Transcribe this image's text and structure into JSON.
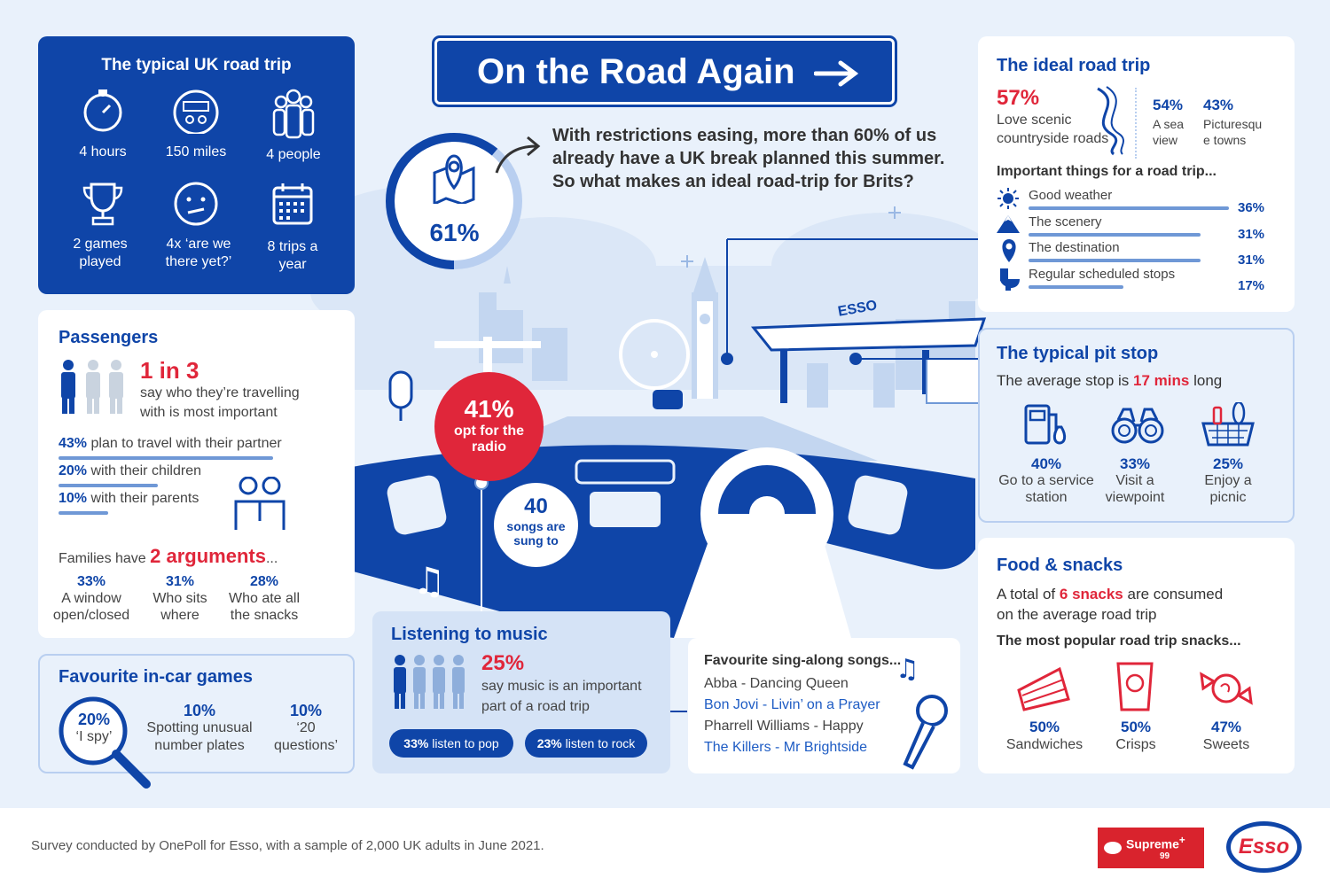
{
  "colors": {
    "navy": "#0f45a8",
    "red": "#e0263a",
    "light": "#e9f1fb",
    "bar": "#6f98d6"
  },
  "title": "On the Road Again",
  "intro": {
    "percent": "61%",
    "line1": "With restrictions easing, more than 60% of us",
    "line2": "already have a UK break planned this summer.",
    "line3": "So what makes an ideal road-trip for Brits?"
  },
  "typical": {
    "title": "The typical UK road trip",
    "items": [
      {
        "icon": "stopwatch-icon",
        "label": "4 hours"
      },
      {
        "icon": "odometer-icon",
        "label": "150 miles"
      },
      {
        "icon": "people-icon",
        "label": "4 people"
      },
      {
        "icon": "trophy-icon",
        "label": "2 games played"
      },
      {
        "icon": "confused-face-icon",
        "label": "4x ‘are we there yet?’"
      },
      {
        "icon": "calendar-icon",
        "label": "8 trips a year"
      }
    ]
  },
  "passengers": {
    "title": "Passengers",
    "stat": "1 in 3",
    "stat_text1": "say who they’re travelling",
    "stat_text2": "with is most important",
    "rows": [
      {
        "pct": "43%",
        "text": "plan to travel with their partner",
        "value": 43
      },
      {
        "pct": "20%",
        "text": "with their children",
        "value": 20
      },
      {
        "pct": "10%",
        "text": "with their parents",
        "value": 10
      }
    ],
    "families_prefix": "Families have",
    "families_count": "2 arguments",
    "families_suffix": "...",
    "arguments": [
      {
        "pct": "33%",
        "l1": "A window",
        "l2": "open/closed"
      },
      {
        "pct": "31%",
        "l1": "Who sits",
        "l2": "where"
      },
      {
        "pct": "28%",
        "l1": "Who ate all",
        "l2": "the snacks"
      }
    ]
  },
  "games": {
    "title": "Favourite in-car games",
    "items": [
      {
        "pct": "20%",
        "l1": "‘I spy’",
        "l2": ""
      },
      {
        "pct": "10%",
        "l1": "Spotting unusual",
        "l2": "number plates"
      },
      {
        "pct": "10%",
        "l1": "‘20",
        "l2": "questions’"
      }
    ]
  },
  "radio": {
    "pct": "41%",
    "l1": "opt for the",
    "l2": "radio"
  },
  "songs_sung": {
    "count": "40",
    "l1": "songs are",
    "l2": "sung to"
  },
  "music": {
    "title": "Listening to music",
    "pct": "25%",
    "l1": "say music is an important",
    "l2": "part of a road trip",
    "pop_pct": "33%",
    "pop_text": "listen to pop",
    "rock_pct": "23%",
    "rock_text": "listen to rock"
  },
  "singalong": {
    "title": "Favourite sing-along songs...",
    "songs": [
      "Abba - Dancing Queen",
      "Bon Jovi - Livin’ on a Prayer",
      "Pharrell Williams - Happy",
      "The Killers - Mr Brightside"
    ]
  },
  "ideal": {
    "title": "The ideal road trip",
    "main_pct": "57%",
    "main_l1": "Love scenic",
    "main_l2": "countryside roads",
    "s1_pct": "54%",
    "s1_l1": "A sea",
    "s1_l2": "view",
    "s2_pct": "43%",
    "s2_l1": "Picturesqu",
    "s2_l2": "e towns",
    "important_title": "Important things for a road trip...",
    "important": [
      {
        "icon": "sun-icon",
        "label": "Good weather",
        "pct": "36%",
        "value": 36
      },
      {
        "icon": "mountain-icon",
        "label": "The scenery",
        "pct": "31%",
        "value": 31
      },
      {
        "icon": "location-pin-icon",
        "label": "The destination",
        "pct": "31%",
        "value": 31
      },
      {
        "icon": "toilet-icon",
        "label": "Regular scheduled stops",
        "pct": "17%",
        "value": 17
      }
    ]
  },
  "pitstop": {
    "title": "The typical pit stop",
    "avg_prefix": "The average stop is",
    "avg_value": "17 mins",
    "avg_suffix": "long",
    "items": [
      {
        "icon": "fuel-pump-icon",
        "pct": "40%",
        "l1": "Go to a service",
        "l2": "station"
      },
      {
        "icon": "binoculars-icon",
        "pct": "33%",
        "l1": "Visit a",
        "l2": "viewpoint"
      },
      {
        "icon": "picnic-basket-icon",
        "pct": "25%",
        "l1": "Enjoy a",
        "l2": "picnic"
      }
    ]
  },
  "food": {
    "title": "Food & snacks",
    "t_prefix": "A total of",
    "t_value": "6 snacks",
    "t_suffix": "are consumed",
    "t_line2": "on the average road trip",
    "popular_title": "The most popular road trip snacks...",
    "items": [
      {
        "icon": "sandwich-icon",
        "pct": "50%",
        "label": "Sandwiches"
      },
      {
        "icon": "crisps-icon",
        "pct": "50%",
        "label": "Crisps"
      },
      {
        "icon": "sweet-icon",
        "pct": "47%",
        "label": "Sweets"
      }
    ]
  },
  "footer": {
    "note": "Survey conducted by OnePoll for Esso, with a sample of 2,000 UK adults in June 2021.",
    "supreme": "Supreme",
    "supreme_plus": "+",
    "supreme_99": "99",
    "esso": "Esso",
    "sign": "ESSO"
  }
}
